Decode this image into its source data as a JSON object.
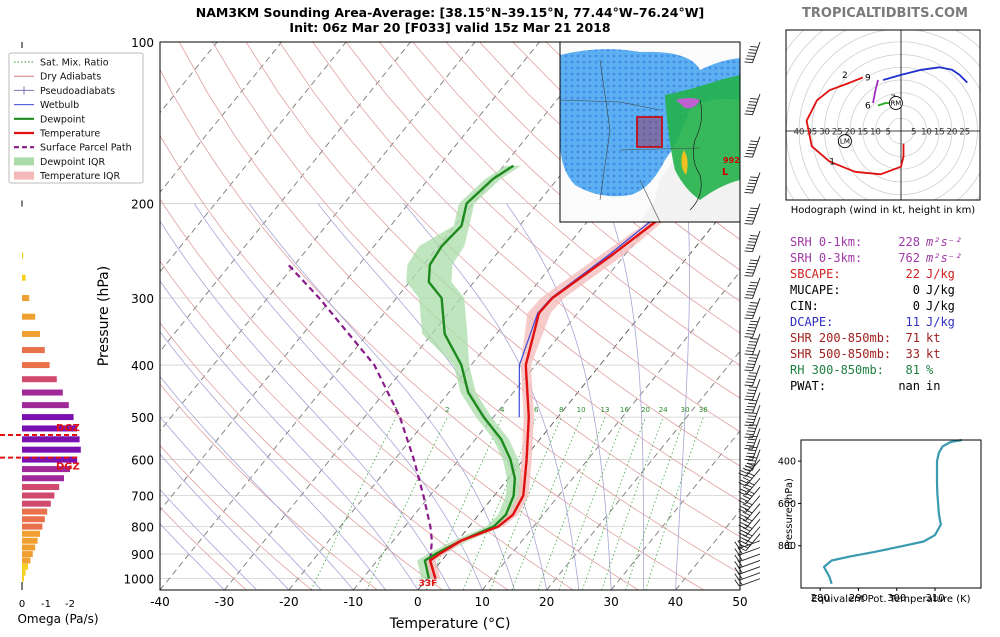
{
  "header": {
    "title": "NAM3KM Sounding Area-Average: [38.15°N–39.15°N, 77.44°W–76.24°W]",
    "subtitle": "Init: 06z Mar 20 [F033] valid 15z Mar 21 2018",
    "brand": "TROPICALTIDBITS.COM"
  },
  "legend": {
    "items": [
      {
        "label": "Sat. Mix. Ratio",
        "color": "#2a9a2a",
        "style": "dotted"
      },
      {
        "label": "Dry Adiabats",
        "color": "#d07a7a",
        "style": "solid"
      },
      {
        "label": "Pseudoadiabats",
        "color": "#7a7ab0",
        "style": "tick"
      },
      {
        "label": "Wetbulb",
        "color": "#3b4bd8",
        "style": "solid"
      },
      {
        "label": "Dewpoint",
        "color": "#1e8a1e",
        "style": "thick"
      },
      {
        "label": "Temperature",
        "color": "#e01010",
        "style": "thick"
      },
      {
        "label": "Surface Parcel Path",
        "color": "#8a1a8a",
        "style": "dashed"
      },
      {
        "label": "Dewpoint IQR",
        "color": "#a9dca9",
        "style": "fill"
      },
      {
        "label": "Temperature IQR",
        "color": "#f6b9b9",
        "style": "fill"
      }
    ]
  },
  "chart_data": [
    {
      "type": "line",
      "name": "skew-t",
      "xlabel": "Temperature (°C)",
      "ylabel": "Pressure (hPa)",
      "xlim": [
        -40,
        50
      ],
      "ylim": [
        1050,
        100
      ],
      "yscale": "log",
      "xticks": [
        -40,
        -30,
        -20,
        -10,
        0,
        10,
        20,
        30,
        40,
        50
      ],
      "yticks": [
        100,
        200,
        300,
        400,
        500,
        600,
        700,
        800,
        900,
        1000
      ],
      "mixing_ratio_labels": [
        1,
        2,
        4,
        6,
        8,
        10,
        13,
        16,
        20,
        24,
        30,
        36
      ],
      "annotation": "33F",
      "series": [
        {
          "name": "Temperature",
          "color": "#e01010",
          "p": [
            1000,
            925,
            900,
            850,
            800,
            760,
            700,
            600,
            500,
            400,
            320,
            300,
            250,
            200,
            150,
            100
          ],
          "t": [
            1.3,
            -1.8,
            -1.2,
            0.5,
            4.5,
            5.3,
            4.5,
            0.5,
            -4.5,
            -11.5,
            -16.0,
            -15.8,
            -12.0,
            -8.0,
            -5.0,
            -3.5
          ]
        },
        {
          "name": "Dewpoint",
          "color": "#1e8a1e",
          "p": [
            1000,
            925,
            900,
            850,
            800,
            760,
            700,
            650,
            600,
            550,
            500,
            450,
            400,
            350,
            300,
            280,
            260,
            240,
            220,
            200,
            180,
            170
          ],
          "t": [
            0.3,
            -2.6,
            -1.8,
            0.5,
            3.8,
            4.2,
            3.0,
            1.0,
            -2.0,
            -6.0,
            -11.5,
            -17.0,
            -21.5,
            -28.0,
            -33.0,
            -37.0,
            -39.0,
            -39.5,
            -39.0,
            -41.0,
            -40.0,
            -38.5
          ]
        },
        {
          "name": "Wetbulb",
          "color": "#3b4bd8",
          "p": [
            500,
            400,
            320,
            300,
            250,
            200,
            180
          ],
          "t": [
            -6.0,
            -12.5,
            -16.2,
            -16.0,
            -12.5,
            -9.0,
            -7.5
          ]
        },
        {
          "name": "Surface Parcel Path",
          "color": "#8a1a8a",
          "p": [
            1000,
            925,
            900,
            850,
            800,
            700,
            600,
            500,
            400,
            300,
            260
          ],
          "t": [
            1.3,
            -1.8,
            -2.5,
            -4.0,
            -6.0,
            -11.0,
            -17.0,
            -24.5,
            -35.0,
            -52.0,
            -61.0
          ]
        }
      ]
    },
    {
      "type": "bar",
      "name": "omega",
      "xlabel": "Omega (Pa/s)",
      "xticks": [
        0,
        -1,
        -2
      ],
      "dgz_label": "DGZ",
      "pressure": [
        250,
        275,
        300,
        325,
        350,
        375,
        400,
        425,
        450,
        475,
        500,
        525,
        550,
        575,
        600,
        625,
        650,
        675,
        700,
        725,
        750,
        775,
        800,
        825,
        850,
        875,
        900,
        925,
        950,
        975,
        1000
      ],
      "values": [
        -0.05,
        -0.15,
        -0.3,
        -0.55,
        -0.75,
        -0.95,
        -1.15,
        -1.45,
        -1.7,
        -1.95,
        -2.15,
        -2.3,
        -2.4,
        -2.45,
        -2.3,
        -2.0,
        -1.75,
        -1.55,
        -1.35,
        -1.2,
        -1.05,
        -0.95,
        -0.85,
        -0.75,
        -0.65,
        -0.55,
        -0.45,
        -0.35,
        -0.25,
        -0.15,
        -0.08
      ],
      "dgz_top": 540,
      "dgz_bottom": 595
    },
    {
      "type": "line",
      "name": "hodograph",
      "xlabel": "Hodograph (wind in kt, height in km)",
      "ring_labels": [
        "40",
        "35",
        "30",
        "25",
        "20",
        "15",
        "10",
        "5",
        "5",
        "10",
        "15",
        "20",
        "25"
      ],
      "height_labels": [
        "1",
        "2",
        "3",
        "6",
        "9"
      ],
      "markers": [
        "RM",
        "LM"
      ],
      "series": [
        {
          "name": "0-3km",
          "color": "#e01010",
          "u": [
            1,
            1,
            0,
            -8,
            -18,
            -28,
            -35,
            -37,
            -33,
            -28,
            -20,
            -15
          ],
          "v": [
            -5,
            -10,
            -14,
            -17,
            -16,
            -12,
            -6,
            4,
            12,
            16,
            19,
            21
          ]
        },
        {
          "name": "3-6km",
          "color": "#22aa22",
          "u": [
            -3,
            -6,
            -9
          ],
          "v": [
            11,
            11,
            10
          ]
        },
        {
          "name": "6-9km",
          "color": "#a030c0",
          "u": [
            -11,
            -10,
            -9
          ],
          "v": [
            11,
            16,
            20
          ]
        },
        {
          "name": "9km+",
          "color": "#2030d0",
          "u": [
            -7,
            0,
            8,
            15,
            20,
            23,
            26
          ],
          "v": [
            20,
            22,
            24,
            25,
            24,
            22,
            19
          ]
        }
      ],
      "rm": [
        -2,
        11
      ],
      "lm": [
        -22,
        -4
      ]
    },
    {
      "type": "line",
      "name": "theta-e",
      "xlabel": "Equivalent Pot. Temperature (K)",
      "ylabel": "Pressure (hPa)",
      "xticks": [
        280,
        290,
        300,
        310
      ],
      "yticks": [
        400,
        600,
        800
      ],
      "xlim": [
        275,
        322
      ],
      "ylim": [
        1000,
        300
      ],
      "series": [
        {
          "name": "theta-e",
          "color": "#3a9ab0",
          "p": [
            300,
            310,
            330,
            360,
            400,
            450,
            500,
            550,
            600,
            650,
            700,
            750,
            780,
            800,
            830,
            850,
            870,
            900,
            950,
            980
          ],
          "t": [
            317,
            314,
            312,
            311,
            310.5,
            310.5,
            310.5,
            310.6,
            310.8,
            311,
            311.5,
            310,
            307,
            302,
            294,
            288,
            283,
            281,
            282.5,
            283
          ]
        }
      ]
    }
  ],
  "parameters": [
    {
      "label": "SRH 0-1km:",
      "value": "228",
      "unit": "m²s⁻²",
      "color": "#a03aa6"
    },
    {
      "label": "SRH 0-3km:",
      "value": "762",
      "unit": "m²s⁻²",
      "color": "#a03aa6"
    },
    {
      "label": "SBCAPE:",
      "value": "22",
      "unit": "J/kg",
      "color": "#d02020"
    },
    {
      "label": "MUCAPE:",
      "value": "0",
      "unit": "J/kg",
      "color": "#000000"
    },
    {
      "label": "CIN:",
      "value": "0",
      "unit": "J/kg",
      "color": "#000000"
    },
    {
      "label": "DCAPE:",
      "value": "11",
      "unit": "J/kg",
      "color": "#3030c0"
    },
    {
      "label": "SHR 200-850mb:",
      "value": "71",
      "unit": "kt",
      "color": "#a02020"
    },
    {
      "label": "SHR 500-850mb:",
      "value": "33",
      "unit": "kt",
      "color": "#a02020"
    },
    {
      "label": "RH 300-850mb:",
      "value": "81",
      "unit": "%",
      "color": "#208040"
    },
    {
      "label": "PWAT:",
      "value": "nan",
      "unit": "in",
      "color": "#000000"
    }
  ],
  "inset_map": {
    "low_label": "992",
    "low_letter": "L"
  }
}
